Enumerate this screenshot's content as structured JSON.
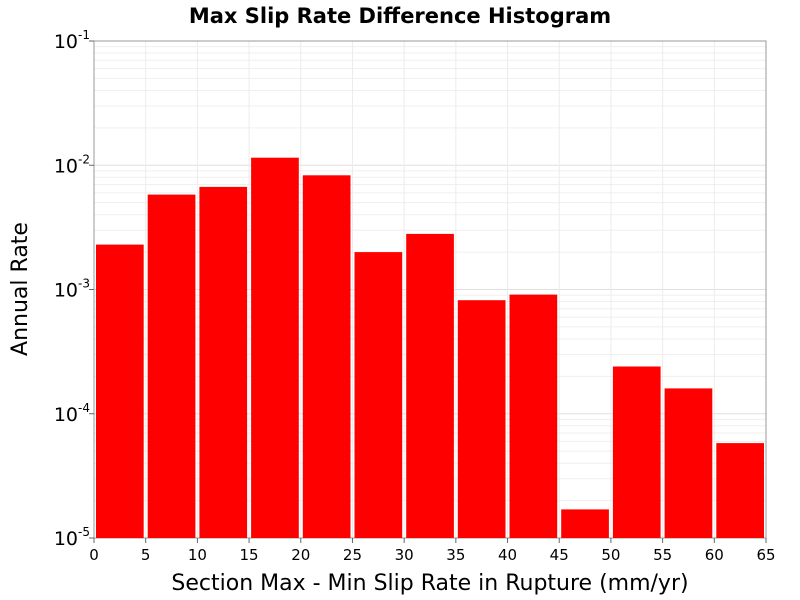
{
  "chart_data": {
    "type": "bar",
    "title": "Max Slip Rate Difference Histogram",
    "xlabel": "Section Max - Min Slip Rate in Rupture (mm/yr)",
    "ylabel": "Annual Rate",
    "xlim": [
      0,
      65
    ],
    "ylim": [
      1e-05,
      0.1
    ],
    "yscale": "log",
    "grid": true,
    "bar_color": "#ff0000",
    "bin_width": 5,
    "x_ticks": [
      0,
      5,
      10,
      15,
      20,
      25,
      30,
      35,
      40,
      45,
      50,
      55,
      60,
      65
    ],
    "x_tick_labels": [
      "0",
      "5",
      "10",
      "15",
      "20",
      "25",
      "30",
      "35",
      "40",
      "45",
      "50",
      "55",
      "60",
      "65"
    ],
    "y_ticks": [
      {
        "value": 0.1,
        "base": "10",
        "exp": "-1"
      },
      {
        "value": 0.01,
        "base": "10",
        "exp": "-2"
      },
      {
        "value": 0.001,
        "base": "10",
        "exp": "-3"
      },
      {
        "value": 0.0001,
        "base": "10",
        "exp": "-4"
      },
      {
        "value": 1e-05,
        "base": "10",
        "exp": "-5"
      }
    ],
    "bins": [
      {
        "x_start": 0,
        "x_end": 5,
        "value": 0.0023
      },
      {
        "x_start": 5,
        "x_end": 10,
        "value": 0.0058
      },
      {
        "x_start": 10,
        "x_end": 15,
        "value": 0.0067
      },
      {
        "x_start": 15,
        "x_end": 20,
        "value": 0.0115
      },
      {
        "x_start": 20,
        "x_end": 25,
        "value": 0.0083
      },
      {
        "x_start": 25,
        "x_end": 30,
        "value": 0.002
      },
      {
        "x_start": 30,
        "x_end": 35,
        "value": 0.0028
      },
      {
        "x_start": 35,
        "x_end": 40,
        "value": 0.00082
      },
      {
        "x_start": 40,
        "x_end": 45,
        "value": 0.00091
      },
      {
        "x_start": 45,
        "x_end": 50,
        "value": 1.7e-05
      },
      {
        "x_start": 50,
        "x_end": 55,
        "value": 0.00024
      },
      {
        "x_start": 55,
        "x_end": 60,
        "value": 0.00016
      },
      {
        "x_start": 60,
        "x_end": 65,
        "value": 5.8e-05
      }
    ]
  }
}
